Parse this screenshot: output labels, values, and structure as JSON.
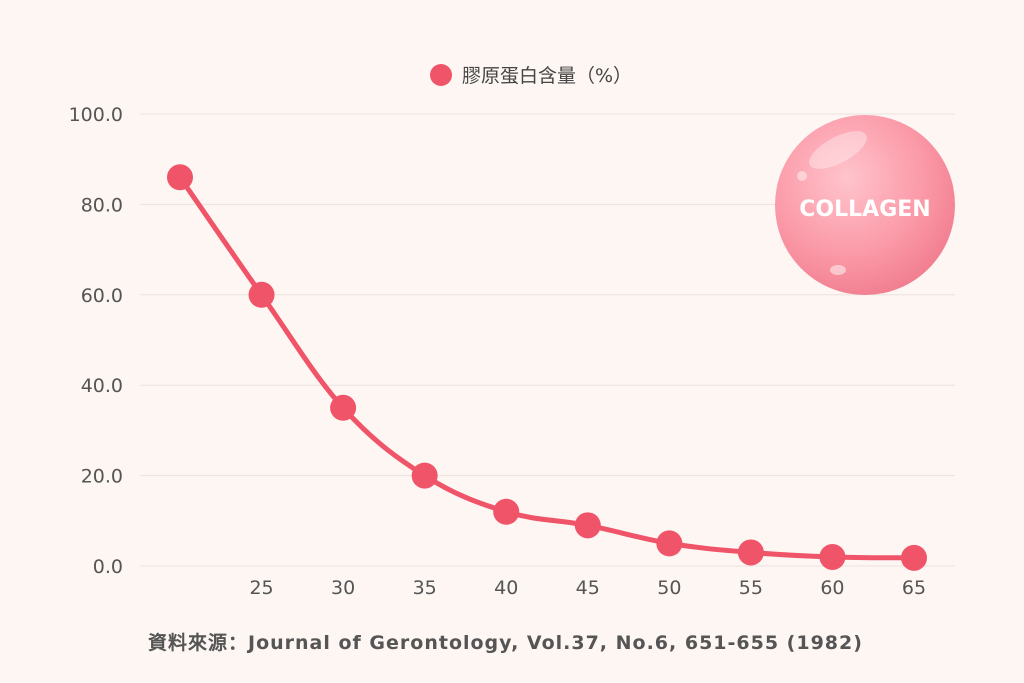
{
  "chart_data": {
    "type": "line",
    "x": [
      20,
      25,
      30,
      35,
      40,
      45,
      50,
      55,
      60,
      65
    ],
    "x_tick_labels": [
      "25",
      "30",
      "35",
      "40",
      "45",
      "50",
      "55",
      "60",
      "65"
    ],
    "series": [
      {
        "name": "膠原蛋白含量（%）",
        "values": [
          86,
          60,
          35,
          20,
          12,
          9,
          5,
          3,
          2,
          1.8
        ]
      }
    ],
    "y_tick_labels": [
      "0.0",
      "20.0",
      "40.0",
      "60.0",
      "80.0",
      "100.0"
    ],
    "ylim": [
      0,
      100
    ],
    "grid": true,
    "legend_position": "top-center",
    "line_color": "#f05468"
  },
  "badge": {
    "text": "COLLAGEN"
  },
  "source": "資料來源：Journal of Gerontology, Vol.37, No.6, 651-655 (1982)"
}
